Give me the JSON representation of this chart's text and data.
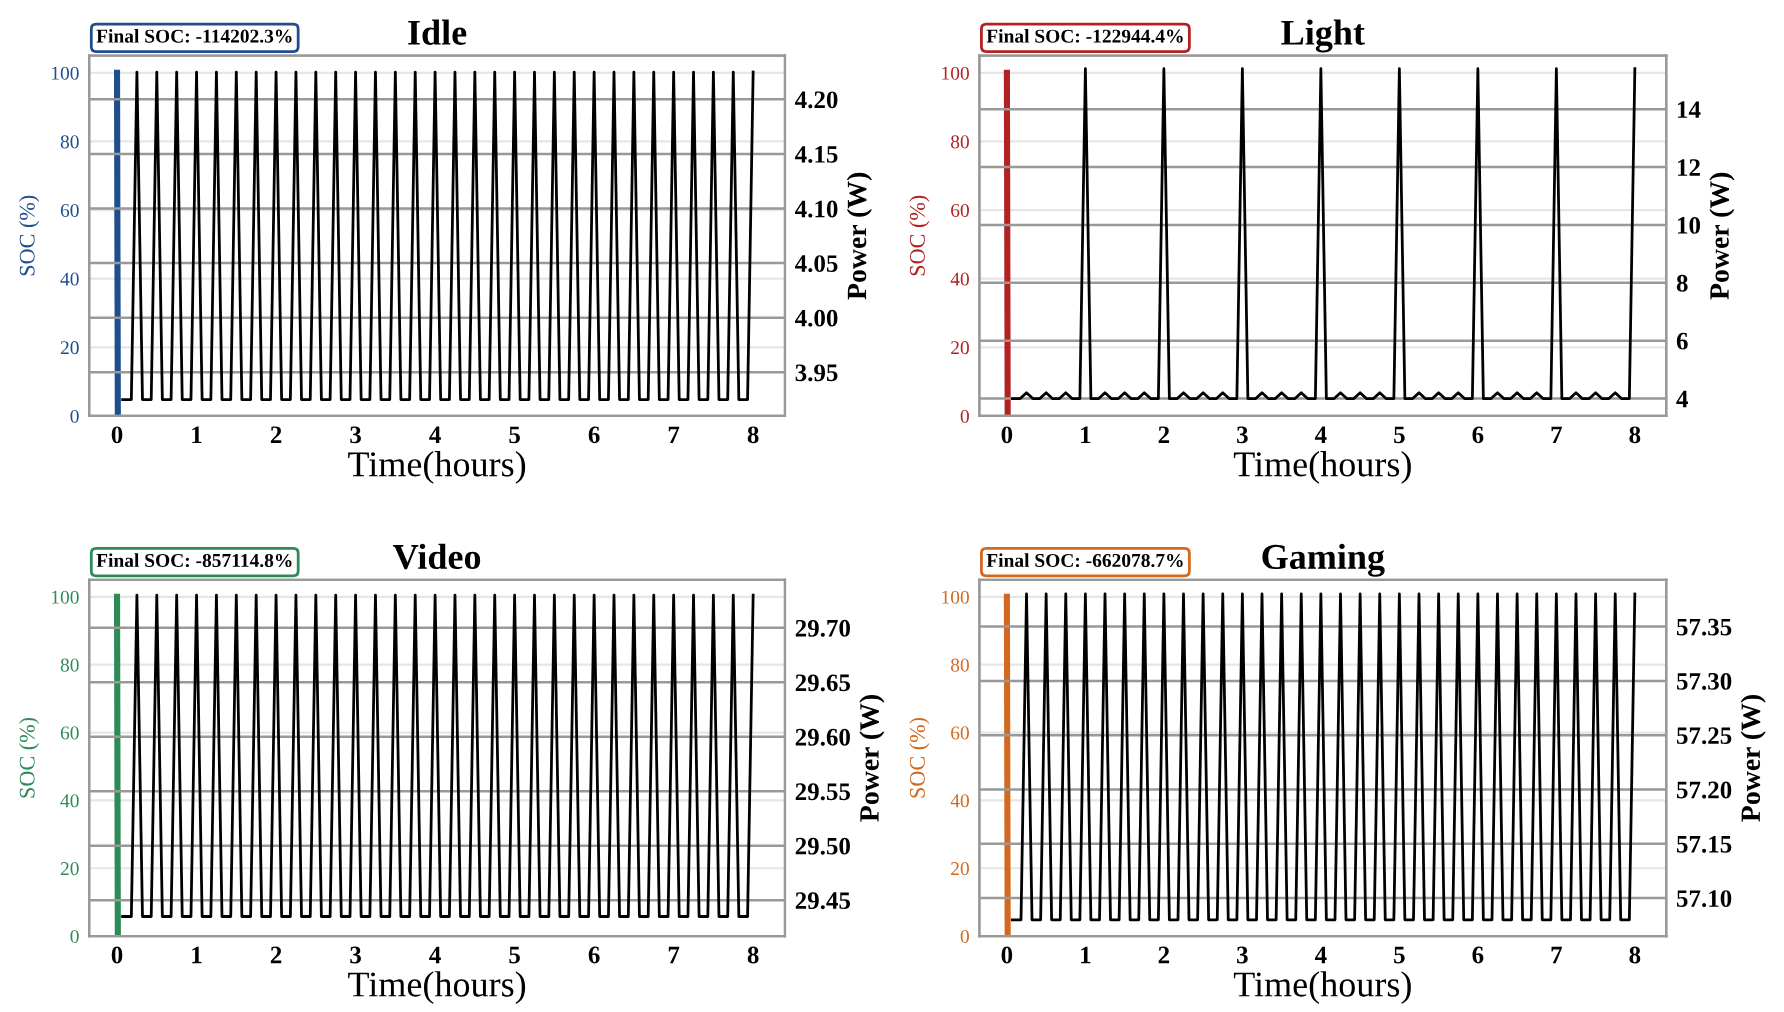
{
  "chart_data": [
    {
      "type": "line",
      "title": "Idle",
      "xlabel": "Time(hours)",
      "ylabel": "SOC (%)",
      "y2label": "Power (W)",
      "xlim": [
        -0.35,
        8.4
      ],
      "xticks": [
        0,
        1,
        2,
        3,
        4,
        5,
        6,
        7,
        8
      ],
      "ylim": [
        0,
        105
      ],
      "yticks": [
        0,
        20,
        40,
        60,
        80,
        100
      ],
      "y2lim": [
        3.91,
        4.24
      ],
      "y2ticks": [
        {
          "value": 3.95,
          "label": "3.95"
        },
        {
          "value": 4.0,
          "label": "4.00"
        },
        {
          "value": 4.05,
          "label": "4.05"
        },
        {
          "value": 4.1,
          "label": "4.10"
        },
        {
          "value": 4.15,
          "label": "4.15"
        },
        {
          "value": 4.2,
          "label": "4.20"
        }
      ],
      "grid": "y",
      "annotations": [
        "Final SOC: -114202.3%"
      ],
      "series": [
        {
          "color": "#1f4e8c",
          "x": [
            0,
            0.01
          ],
          "values": [
            100,
            0
          ]
        },
        {
          "color": "#000000",
          "axis": "y2",
          "x": [
            0.07,
            0.18,
            0.25,
            0.32,
            0.43,
            0.5,
            0.57,
            0.68,
            0.75,
            0.82,
            0.93,
            1,
            1.07,
            1.18,
            1.25,
            1.32,
            1.43,
            1.5,
            1.57,
            1.68,
            1.75,
            1.82,
            1.93,
            2,
            2.07,
            2.18,
            2.25,
            2.32,
            2.43,
            2.5,
            2.57,
            2.68,
            2.75,
            2.82,
            2.93,
            3,
            3.07,
            3.18,
            3.25,
            3.32,
            3.43,
            3.5,
            3.57,
            3.68,
            3.75,
            3.82,
            3.93,
            4,
            4.07,
            4.18,
            4.25,
            4.32,
            4.43,
            4.5,
            4.57,
            4.68,
            4.75,
            4.82,
            4.93,
            5,
            5.07,
            5.18,
            5.25,
            5.32,
            5.43,
            5.5,
            5.57,
            5.68,
            5.75,
            5.82,
            5.93,
            6,
            6.07,
            6.18,
            6.25,
            6.32,
            6.43,
            6.5,
            6.57,
            6.68,
            6.75,
            6.82,
            6.93,
            7,
            7.07,
            7.18,
            7.25,
            7.32,
            7.43,
            7.5,
            7.57,
            7.68,
            7.75,
            7.82,
            7.93,
            8
          ],
          "values": [
            3.925,
            3.925,
            4.225,
            3.925,
            3.925,
            4.225,
            3.925,
            3.925,
            4.225,
            3.925,
            3.925,
            4.225,
            3.925,
            3.925,
            4.225,
            3.925,
            3.925,
            4.225,
            3.925,
            3.925,
            4.225,
            3.925,
            3.925,
            4.225,
            3.925,
            3.925,
            4.225,
            3.925,
            3.925,
            4.225,
            3.925,
            3.925,
            4.225,
            3.925,
            3.925,
            4.225,
            3.925,
            3.925,
            4.225,
            3.925,
            3.925,
            4.225,
            3.925,
            3.925,
            4.225,
            3.925,
            3.925,
            4.225,
            3.925,
            3.925,
            4.225,
            3.925,
            3.925,
            4.225,
            3.925,
            3.925,
            4.225,
            3.925,
            3.925,
            4.225,
            3.925,
            3.925,
            4.225,
            3.925,
            3.925,
            4.225,
            3.925,
            3.925,
            4.225,
            3.925,
            3.925,
            4.225,
            3.925,
            3.925,
            4.225,
            3.925,
            3.925,
            4.225,
            3.925,
            3.925,
            4.225,
            3.925,
            3.925,
            4.225,
            3.925,
            3.925,
            4.225,
            3.925,
            3.925,
            4.225,
            3.925,
            3.925,
            4.225,
            3.925,
            3.925,
            4.225
          ]
        }
      ]
    },
    {
      "type": "line",
      "title": "Light",
      "xlabel": "Time(hours)",
      "ylabel": "SOC (%)",
      "y2label": "Power (W)",
      "xlim": [
        -0.35,
        8.4
      ],
      "xticks": [
        0,
        1,
        2,
        3,
        4,
        5,
        6,
        7,
        8
      ],
      "ylim": [
        0,
        105
      ],
      "yticks": [
        0,
        20,
        40,
        60,
        80,
        100
      ],
      "y2lim": [
        3.4,
        15.85
      ],
      "y2ticks": [
        4,
        6,
        8,
        10,
        12,
        14
      ],
      "grid": "y",
      "annotations": [
        "Final SOC: -122944.4%"
      ],
      "series": [
        {
          "color": "#b22222",
          "x": [
            0,
            0.01
          ],
          "values": [
            100,
            0
          ]
        },
        {
          "color": "#000000",
          "axis": "y2",
          "x": [
            0.07,
            0.17,
            0.25,
            0.33,
            0.42,
            0.5,
            0.58,
            0.67,
            0.75,
            0.83,
            0.93,
            1,
            1.07,
            1.17,
            1.25,
            1.33,
            1.42,
            1.5,
            1.58,
            1.67,
            1.75,
            1.83,
            1.93,
            2,
            2.07,
            2.17,
            2.25,
            2.33,
            2.42,
            2.5,
            2.58,
            2.67,
            2.75,
            2.83,
            2.93,
            3,
            3.07,
            3.17,
            3.25,
            3.33,
            3.42,
            3.5,
            3.58,
            3.67,
            3.75,
            3.83,
            3.93,
            4,
            4.07,
            4.17,
            4.25,
            4.33,
            4.42,
            4.5,
            4.58,
            4.67,
            4.75,
            4.83,
            4.93,
            5,
            5.07,
            5.17,
            5.25,
            5.33,
            5.42,
            5.5,
            5.58,
            5.67,
            5.75,
            5.83,
            5.93,
            6,
            6.07,
            6.17,
            6.25,
            6.33,
            6.42,
            6.5,
            6.58,
            6.67,
            6.75,
            6.83,
            6.93,
            7,
            7.07,
            7.17,
            7.25,
            7.33,
            7.42,
            7.5,
            7.58,
            7.67,
            7.75,
            7.83,
            7.93,
            8
          ],
          "values": [
            4.0,
            4.0,
            4.2,
            4.0,
            4.0,
            4.2,
            4.0,
            4.0,
            4.2,
            4.0,
            4.0,
            15.4,
            4.0,
            4.0,
            4.2,
            4.0,
            4.0,
            4.2,
            4.0,
            4.0,
            4.2,
            4.0,
            4.0,
            15.4,
            4.0,
            4.0,
            4.2,
            4.0,
            4.0,
            4.2,
            4.0,
            4.0,
            4.2,
            4.0,
            4.0,
            15.4,
            4.0,
            4.0,
            4.2,
            4.0,
            4.0,
            4.2,
            4.0,
            4.0,
            4.2,
            4.0,
            4.0,
            15.4,
            4.0,
            4.0,
            4.2,
            4.0,
            4.0,
            4.2,
            4.0,
            4.0,
            4.2,
            4.0,
            4.0,
            15.4,
            4.0,
            4.0,
            4.2,
            4.0,
            4.0,
            4.2,
            4.0,
            4.0,
            4.2,
            4.0,
            4.0,
            15.4,
            4.0,
            4.0,
            4.2,
            4.0,
            4.0,
            4.2,
            4.0,
            4.0,
            4.2,
            4.0,
            4.0,
            15.4,
            4.0,
            4.0,
            4.2,
            4.0,
            4.0,
            4.2,
            4.0,
            4.0,
            4.2,
            4.0,
            4.0,
            15.4
          ]
        }
      ]
    },
    {
      "type": "line",
      "title": "Video",
      "xlabel": "Time(hours)",
      "ylabel": "SOC (%)",
      "y2label": "Power (W)",
      "xlim": [
        -0.35,
        8.4
      ],
      "xticks": [
        0,
        1,
        2,
        3,
        4,
        5,
        6,
        7,
        8
      ],
      "ylim": [
        0,
        105
      ],
      "yticks": [
        0,
        20,
        40,
        60,
        80,
        100
      ],
      "y2lim": [
        29.417,
        29.744
      ],
      "y2ticks": [
        {
          "value": 29.45,
          "label": "29.45"
        },
        {
          "value": 29.5,
          "label": "29.50"
        },
        {
          "value": 29.55,
          "label": "29.55"
        },
        {
          "value": 29.6,
          "label": "29.60"
        },
        {
          "value": 29.65,
          "label": "29.65"
        },
        {
          "value": 29.7,
          "label": "29.70"
        }
      ],
      "grid": "y",
      "annotations": [
        "Final SOC: -857114.8%"
      ],
      "series": [
        {
          "color": "#2e8b57",
          "x": [
            0,
            0.01
          ],
          "values": [
            100,
            0
          ]
        },
        {
          "color": "#000000",
          "axis": "y2",
          "x": [
            0.07,
            0.18,
            0.25,
            0.32,
            0.43,
            0.5,
            0.57,
            0.68,
            0.75,
            0.82,
            0.93,
            1,
            1.07,
            1.18,
            1.25,
            1.32,
            1.43,
            1.5,
            1.57,
            1.68,
            1.75,
            1.82,
            1.93,
            2,
            2.07,
            2.18,
            2.25,
            2.32,
            2.43,
            2.5,
            2.57,
            2.68,
            2.75,
            2.82,
            2.93,
            3,
            3.07,
            3.18,
            3.25,
            3.32,
            3.43,
            3.5,
            3.57,
            3.68,
            3.75,
            3.82,
            3.93,
            4,
            4.07,
            4.18,
            4.25,
            4.32,
            4.43,
            4.5,
            4.57,
            4.68,
            4.75,
            4.82,
            4.93,
            5,
            5.07,
            5.18,
            5.25,
            5.32,
            5.43,
            5.5,
            5.57,
            5.68,
            5.75,
            5.82,
            5.93,
            6,
            6.07,
            6.18,
            6.25,
            6.32,
            6.43,
            6.5,
            6.57,
            6.68,
            6.75,
            6.82,
            6.93,
            7,
            7.07,
            7.18,
            7.25,
            7.32,
            7.43,
            7.5,
            7.57,
            7.68,
            7.75,
            7.82,
            7.93,
            8
          ],
          "values": [
            29.435,
            29.435,
            29.73,
            29.435,
            29.435,
            29.73,
            29.435,
            29.435,
            29.73,
            29.435,
            29.435,
            29.73,
            29.435,
            29.435,
            29.73,
            29.435,
            29.435,
            29.73,
            29.435,
            29.435,
            29.73,
            29.435,
            29.435,
            29.73,
            29.435,
            29.435,
            29.73,
            29.435,
            29.435,
            29.73,
            29.435,
            29.435,
            29.73,
            29.435,
            29.435,
            29.73,
            29.435,
            29.435,
            29.73,
            29.435,
            29.435,
            29.73,
            29.435,
            29.435,
            29.73,
            29.435,
            29.435,
            29.73,
            29.435,
            29.435,
            29.73,
            29.435,
            29.435,
            29.73,
            29.435,
            29.435,
            29.73,
            29.435,
            29.435,
            29.73,
            29.435,
            29.435,
            29.73,
            29.435,
            29.435,
            29.73,
            29.435,
            29.435,
            29.73,
            29.435,
            29.435,
            29.73,
            29.435,
            29.435,
            29.73,
            29.435,
            29.435,
            29.73,
            29.435,
            29.435,
            29.73,
            29.435,
            29.435,
            29.73,
            29.435,
            29.435,
            29.73,
            29.435,
            29.435,
            29.73,
            29.435,
            29.435,
            29.73,
            29.435,
            29.435,
            29.73
          ]
        }
      ]
    },
    {
      "type": "line",
      "title": "Gaming",
      "xlabel": "Time(hours)",
      "ylabel": "SOC (%)",
      "y2label": "Power (W)",
      "xlim": [
        -0.35,
        8.4
      ],
      "xticks": [
        0,
        1,
        2,
        3,
        4,
        5,
        6,
        7,
        8
      ],
      "ylim": [
        0,
        105
      ],
      "yticks": [
        0,
        20,
        40,
        60,
        80,
        100
      ],
      "y2lim": [
        57.065,
        57.393
      ],
      "y2ticks": [
        {
          "value": 57.1,
          "label": "57.10"
        },
        {
          "value": 57.15,
          "label": "57.15"
        },
        {
          "value": 57.2,
          "label": "57.20"
        },
        {
          "value": 57.25,
          "label": "57.25"
        },
        {
          "value": 57.3,
          "label": "57.30"
        },
        {
          "value": 57.35,
          "label": "57.35"
        }
      ],
      "grid": "y",
      "annotations": [
        "Final SOC: -662078.7%"
      ],
      "series": [
        {
          "color": "#d2691e",
          "x": [
            0,
            0.01
          ],
          "values": [
            100,
            0
          ]
        },
        {
          "color": "#000000",
          "axis": "y2",
          "x": [
            0.07,
            0.18,
            0.25,
            0.32,
            0.43,
            0.5,
            0.57,
            0.68,
            0.75,
            0.82,
            0.93,
            1,
            1.07,
            1.18,
            1.25,
            1.32,
            1.43,
            1.5,
            1.57,
            1.68,
            1.75,
            1.82,
            1.93,
            2,
            2.07,
            2.18,
            2.25,
            2.32,
            2.43,
            2.5,
            2.57,
            2.68,
            2.75,
            2.82,
            2.93,
            3,
            3.07,
            3.18,
            3.25,
            3.32,
            3.43,
            3.5,
            3.57,
            3.68,
            3.75,
            3.82,
            3.93,
            4,
            4.07,
            4.18,
            4.25,
            4.32,
            4.43,
            4.5,
            4.57,
            4.68,
            4.75,
            4.82,
            4.93,
            5,
            5.07,
            5.18,
            5.25,
            5.32,
            5.43,
            5.5,
            5.57,
            5.68,
            5.75,
            5.82,
            5.93,
            6,
            6.07,
            6.18,
            6.25,
            6.32,
            6.43,
            6.5,
            6.57,
            6.68,
            6.75,
            6.82,
            6.93,
            7,
            7.07,
            7.18,
            7.25,
            7.32,
            7.43,
            7.5,
            7.57,
            7.68,
            7.75,
            7.82,
            7.93,
            8
          ],
          "values": [
            57.08,
            57.08,
            57.38,
            57.08,
            57.08,
            57.38,
            57.08,
            57.08,
            57.38,
            57.08,
            57.08,
            57.38,
            57.08,
            57.08,
            57.38,
            57.08,
            57.08,
            57.38,
            57.08,
            57.08,
            57.38,
            57.08,
            57.08,
            57.38,
            57.08,
            57.08,
            57.38,
            57.08,
            57.08,
            57.38,
            57.08,
            57.08,
            57.38,
            57.08,
            57.08,
            57.38,
            57.08,
            57.08,
            57.38,
            57.08,
            57.08,
            57.38,
            57.08,
            57.08,
            57.38,
            57.08,
            57.08,
            57.38,
            57.08,
            57.08,
            57.38,
            57.08,
            57.08,
            57.38,
            57.08,
            57.08,
            57.38,
            57.08,
            57.08,
            57.38,
            57.08,
            57.08,
            57.38,
            57.08,
            57.08,
            57.38,
            57.08,
            57.08,
            57.38,
            57.08,
            57.08,
            57.38,
            57.08,
            57.08,
            57.38,
            57.08,
            57.08,
            57.38,
            57.08,
            57.08,
            57.38,
            57.08,
            57.08,
            57.38,
            57.08,
            57.08,
            57.38,
            57.08,
            57.08,
            57.38,
            57.08,
            57.08,
            57.38,
            57.08,
            57.08,
            57.38
          ]
        }
      ]
    }
  ]
}
